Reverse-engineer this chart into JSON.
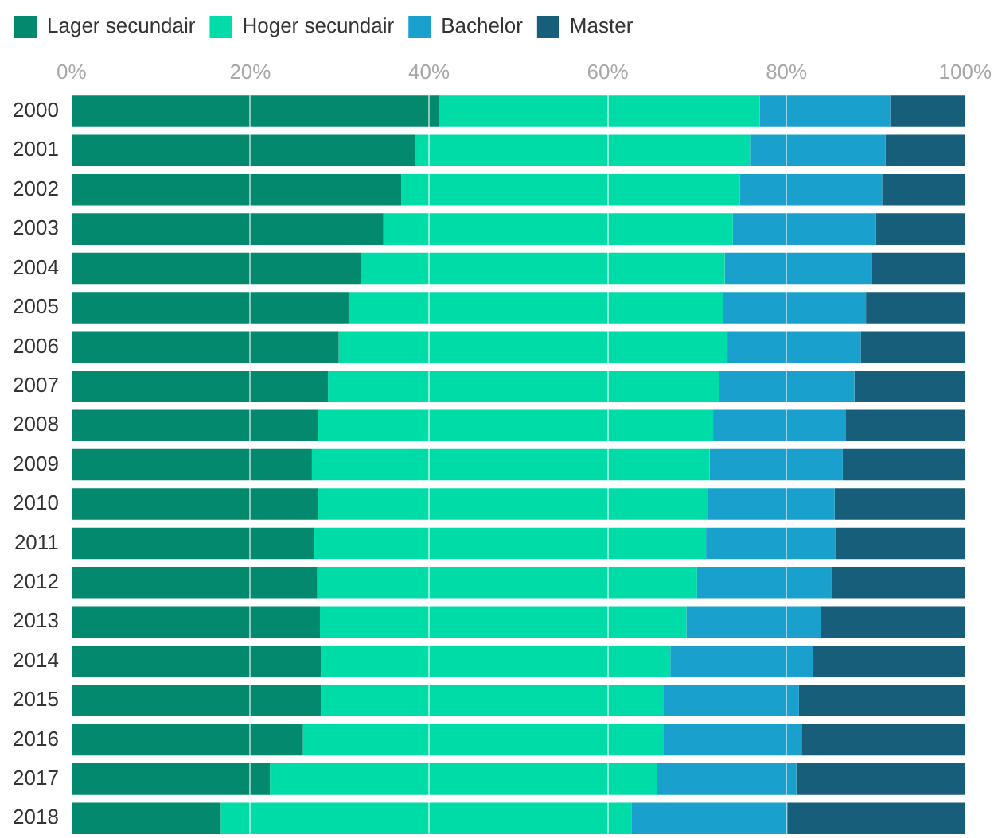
{
  "chart_data": {
    "type": "bar",
    "orientation": "horizontal",
    "stacked": true,
    "categories": [
      "2000",
      "2001",
      "2002",
      "2003",
      "2004",
      "2005",
      "2006",
      "2007",
      "2008",
      "2009",
      "2010",
      "2011",
      "2012",
      "2013",
      "2014",
      "2015",
      "2016",
      "2017",
      "2018"
    ],
    "series": [
      {
        "name": "Lager secundair",
        "color": "#02896e",
        "values": [
          41.2,
          38.4,
          36.9,
          34.9,
          32.4,
          31.0,
          29.9,
          28.7,
          27.6,
          26.9,
          27.6,
          27.1,
          27.5,
          27.8,
          27.9,
          27.9,
          25.9,
          22.2,
          16.7
        ]
      },
      {
        "name": "Hoger secundair",
        "color": "#00dca8",
        "values": [
          35.8,
          37.6,
          37.9,
          39.1,
          40.7,
          41.9,
          43.5,
          43.8,
          44.2,
          44.5,
          43.6,
          43.9,
          42.5,
          41.0,
          39.1,
          38.3,
          40.3,
          43.3,
          46.0
        ]
      },
      {
        "name": "Bachelor",
        "color": "#1aa0cc",
        "values": [
          14.6,
          15.1,
          15.9,
          16.0,
          16.5,
          16.0,
          14.9,
          15.1,
          14.8,
          14.9,
          14.2,
          14.5,
          15.0,
          15.1,
          16.0,
          15.2,
          15.5,
          15.6,
          17.4
        ]
      },
      {
        "name": "Master",
        "color": "#175e7a",
        "values": [
          8.4,
          8.9,
          9.3,
          10.0,
          10.4,
          11.1,
          11.7,
          12.4,
          13.4,
          13.7,
          14.6,
          14.5,
          15.0,
          16.1,
          17.0,
          18.6,
          18.3,
          18.9,
          19.9
        ]
      }
    ],
    "xlim": [
      0,
      100
    ],
    "xticks": [
      {
        "value": 0,
        "label": "0%"
      },
      {
        "value": 20,
        "label": "20%"
      },
      {
        "value": 40,
        "label": "40%"
      },
      {
        "value": 60,
        "label": "60%"
      },
      {
        "value": 80,
        "label": "80%"
      },
      {
        "value": 100,
        "label": "100%"
      }
    ],
    "grid": "x",
    "legend": "top left"
  }
}
